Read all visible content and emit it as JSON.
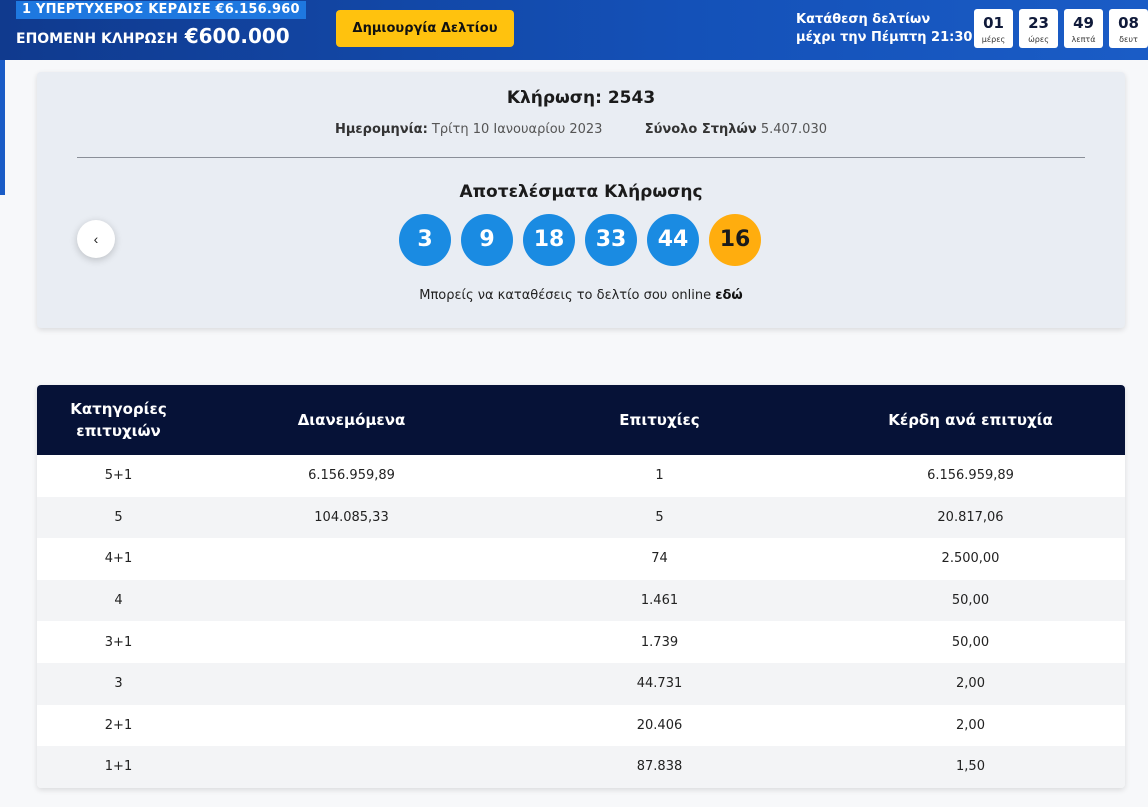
{
  "banner": {
    "winner_text": "1 ΥΠΕΡΤΥΧΕΡΟΣ ΚΕΡΔΙΣΕ €6.156.960",
    "next_draw_label": "ΕΠΟΜΕΝΗ ΚΛΗΡΩΣΗ",
    "next_draw_amount": "€600.000",
    "create_button": "Δημιουργία Δελτίου",
    "deadline_line1": "Κατάθεση δελτίων",
    "deadline_line2": "μέχρι την Πέμπτη 21:30",
    "countdown": [
      {
        "value": "01",
        "unit": "μέρες"
      },
      {
        "value": "23",
        "unit": "ώρες"
      },
      {
        "value": "49",
        "unit": "λεπτά"
      },
      {
        "value": "08",
        "unit": "δευτ"
      }
    ]
  },
  "draw": {
    "title": "Κλήρωση: 2543",
    "date_label": "Ημερομηνία:",
    "date_value": "Τρίτη 10 Ιανουαρίου 2023",
    "columns_label": "Σύνολο Στηλών",
    "columns_value": "5.407.030",
    "results_title": "Αποτελέσματα Κλήρωσης",
    "numbers": [
      "3",
      "9",
      "18",
      "33",
      "44"
    ],
    "joker": "16",
    "prev_icon": "‹",
    "online_text": "Μπορείς να καταθέσεις το δελτίο σου online",
    "online_link": "εδώ"
  },
  "table": {
    "headers": [
      "Κατηγορίες επιτυχιών",
      "Διανεμόμενα",
      "Επιτυχίες",
      "Κέρδη ανά επιτυχία"
    ],
    "rows": [
      [
        "5+1",
        "6.156.959,89",
        "1",
        "6.156.959,89"
      ],
      [
        "5",
        "104.085,33",
        "5",
        "20.817,06"
      ],
      [
        "4+1",
        "",
        "74",
        "2.500,00"
      ],
      [
        "4",
        "",
        "1.461",
        "50,00"
      ],
      [
        "3+1",
        "",
        "1.739",
        "50,00"
      ],
      [
        "3",
        "",
        "44.731",
        "2,00"
      ],
      [
        "2+1",
        "",
        "20.406",
        "2,00"
      ],
      [
        "1+1",
        "",
        "87.838",
        "1,50"
      ]
    ]
  },
  "colors": {
    "banner_blue": "#1451b8",
    "ball_blue": "#1a8be2",
    "joker_orange": "#ffad0e",
    "button_yellow": "#ffc20e",
    "table_header": "#061237"
  }
}
